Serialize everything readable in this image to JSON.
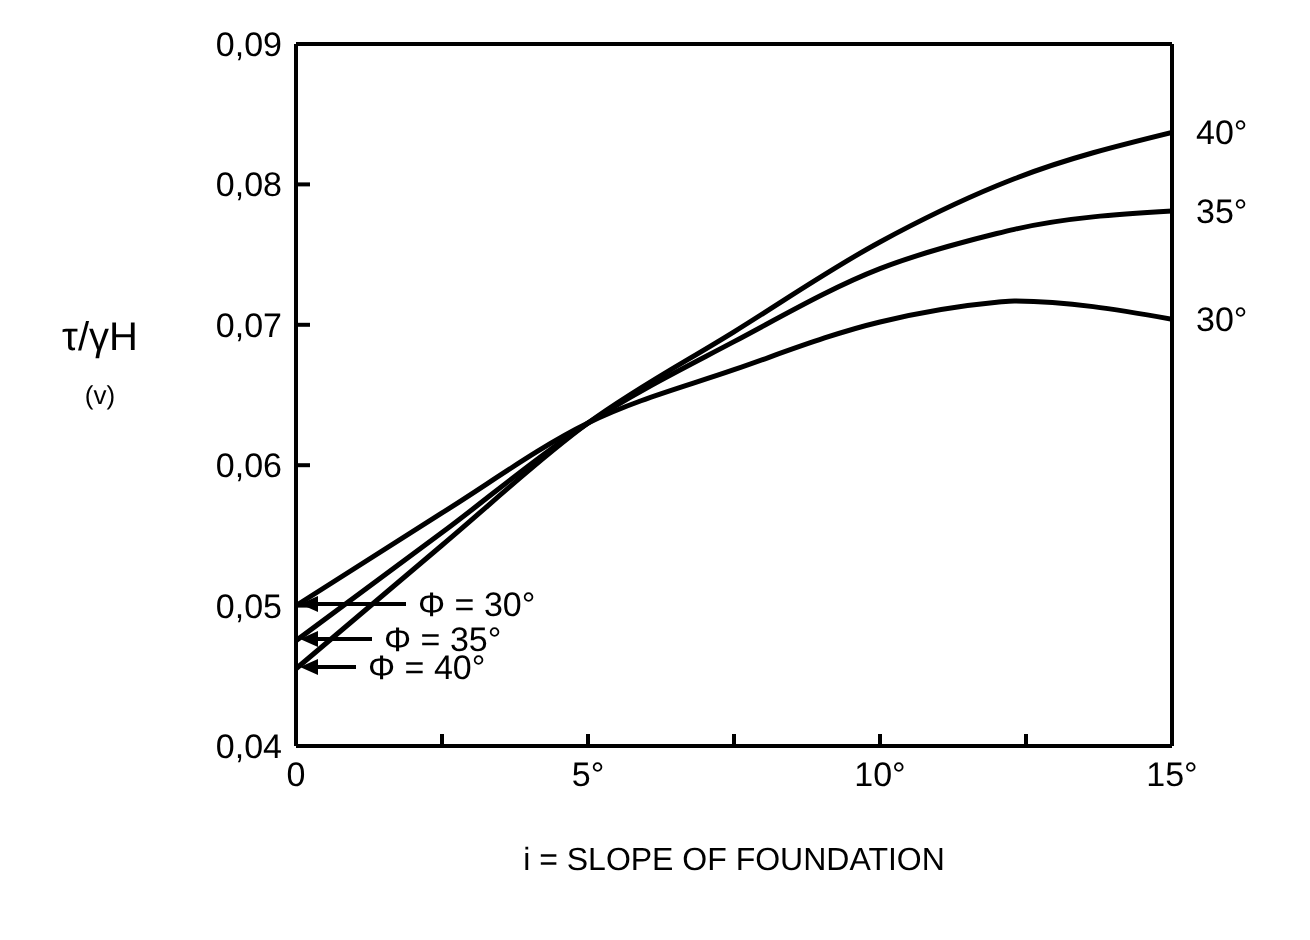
{
  "chart_data": {
    "type": "line",
    "xlabel": "i = SLOPE OF FOUNDATION",
    "ylabel": "τ/γH",
    "annotations": [
      "(v)",
      "Φ = 30°",
      "Φ = 35°",
      "Φ = 40°"
    ],
    "x": [
      0,
      2.5,
      5,
      7.5,
      10,
      12,
      12.3,
      15
    ],
    "series": [
      {
        "name": "40°",
        "color": "#000000",
        "values": [
          0.0455,
          0.0543,
          0.063,
          0.0695,
          0.0759,
          0.0799,
          0.0804,
          0.0837
        ]
      },
      {
        "name": "35°",
        "color": "#000000",
        "values": [
          0.0475,
          0.0552,
          0.063,
          0.0688,
          0.074,
          0.0765,
          0.0768,
          0.0781
        ]
      },
      {
        "name": "30°",
        "color": "#000000",
        "values": [
          0.05,
          0.0566,
          0.063,
          0.0668,
          0.0702,
          0.0716,
          0.0717,
          0.0704
        ]
      }
    ],
    "xlim": [
      0,
      15
    ],
    "xticks": [
      0,
      {
        "value": 2.5,
        "label": null
      },
      {
        "value": 5,
        "label": "5°"
      },
      {
        "value": 7.5,
        "label": null
      },
      {
        "value": 10,
        "label": "10°"
      },
      {
        "value": 12.5,
        "label": null
      },
      {
        "value": 15,
        "label": "15°"
      }
    ],
    "ylim": [
      0.04,
      0.09
    ],
    "yticks": [
      {
        "value": 0.04,
        "label": "0,04"
      },
      {
        "value": 0.05,
        "label": "0,05"
      },
      {
        "value": 0.06,
        "label": "0,06"
      },
      {
        "value": 0.07,
        "label": "0,07"
      },
      {
        "value": 0.08,
        "label": "0,08"
      },
      {
        "value": 0.09,
        "label": "0,09"
      }
    ],
    "grid": false,
    "legend": false,
    "marker": "none",
    "line_style": "solid"
  }
}
